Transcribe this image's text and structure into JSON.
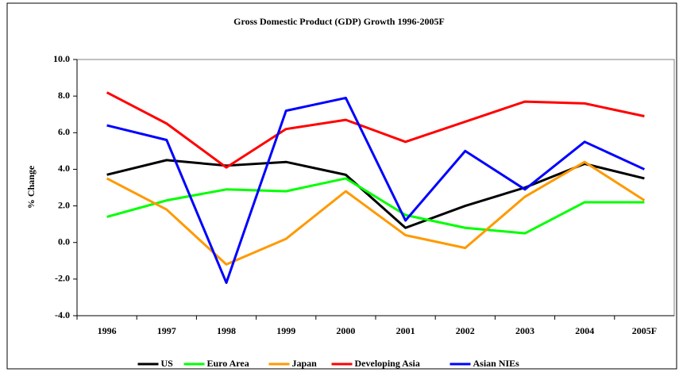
{
  "chart_data": {
    "type": "line",
    "title": "Gross Domestic Product (GDP) Growth 1996-2005F",
    "y_label": "% Change",
    "categories": [
      "1996",
      "1997",
      "1998",
      "1999",
      "2000",
      "2001",
      "2002",
      "2003",
      "2004",
      "2005F"
    ],
    "series": [
      {
        "name": "US",
        "color": "#000000",
        "values": [
          3.7,
          4.5,
          4.2,
          4.4,
          3.7,
          0.8,
          2.0,
          3.0,
          4.3,
          3.5
        ]
      },
      {
        "name": "Euro Area",
        "color": "#00ff00",
        "values": [
          1.4,
          2.3,
          2.9,
          2.8,
          3.5,
          1.5,
          0.8,
          0.5,
          2.2,
          2.2
        ]
      },
      {
        "name": "Japan",
        "color": "#ff9900",
        "values": [
          3.5,
          1.8,
          -1.2,
          0.2,
          2.8,
          0.4,
          -0.3,
          2.5,
          4.4,
          2.3
        ]
      },
      {
        "name": "Developing Asia",
        "color": "#ff0000",
        "values": [
          8.2,
          6.5,
          4.1,
          6.2,
          6.7,
          5.5,
          6.6,
          7.7,
          7.6,
          6.9
        ]
      },
      {
        "name": "Asian NIEs",
        "color": "#0000ff",
        "values": [
          6.4,
          5.6,
          -2.2,
          7.2,
          7.9,
          1.2,
          5.0,
          2.9,
          5.5,
          4.0
        ]
      }
    ],
    "ylim": [
      -4,
      10
    ],
    "yticks": [
      {
        "value": -4,
        "label": "-4.0"
      },
      {
        "value": -2,
        "label": "-2.0"
      },
      {
        "value": 0,
        "label": "0.0"
      },
      {
        "value": 2,
        "label": "2.0"
      },
      {
        "value": 4,
        "label": "4.0"
      },
      {
        "value": 6,
        "label": "6.0"
      },
      {
        "value": 8,
        "label": "8.0"
      },
      {
        "value": 10,
        "label": "10.0"
      }
    ],
    "legend": "bottom"
  }
}
